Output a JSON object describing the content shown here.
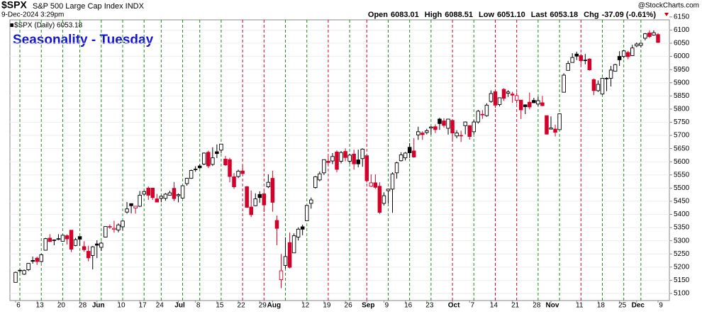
{
  "chart_data": {
    "type": "candlestick",
    "title": "$SPX",
    "subtitle": "S&P 500 Large Cap Index INDX",
    "date": "9-Dec-2024 3:29pm",
    "watermark": "@StockCharts.com",
    "quote": [
      {
        "label": "Open",
        "value": "6083.01"
      },
      {
        "label": "High",
        "value": "6088.51"
      },
      {
        "label": "Low",
        "value": "6051.10"
      },
      {
        "label": "Last",
        "value": "6053.18"
      },
      {
        "label": "Chg",
        "value": "-37.09 (-0.61%)"
      }
    ],
    "legend": "$SPX (Daily) 6053.18",
    "annotation": "Seasonality - Tuesday",
    "up_color": "#1a8f1a",
    "down_color": "#d4002a",
    "grid": true,
    "x": [
      "2024-05-06",
      "2024-05-07",
      "2024-05-08",
      "2024-05-09",
      "2024-05-10",
      "2024-05-13",
      "2024-05-14",
      "2024-05-15",
      "2024-05-16",
      "2024-05-17",
      "2024-05-20",
      "2024-05-21",
      "2024-05-22",
      "2024-05-23",
      "2024-05-24",
      "2024-05-28",
      "2024-05-29",
      "2024-05-30",
      "2024-05-31",
      "2024-06-03",
      "2024-06-04",
      "2024-06-05",
      "2024-06-06",
      "2024-06-07",
      "2024-06-10",
      "2024-06-11",
      "2024-06-12",
      "2024-06-13",
      "2024-06-14",
      "2024-06-17",
      "2024-06-18",
      "2024-06-20",
      "2024-06-21",
      "2024-06-24",
      "2024-06-25",
      "2024-06-26",
      "2024-06-27",
      "2024-06-28",
      "2024-07-01",
      "2024-07-02",
      "2024-07-03",
      "2024-07-05",
      "2024-07-08",
      "2024-07-09",
      "2024-07-10",
      "2024-07-11",
      "2024-07-12",
      "2024-07-15",
      "2024-07-16",
      "2024-07-17",
      "2024-07-18",
      "2024-07-19",
      "2024-07-22",
      "2024-07-23",
      "2024-07-24",
      "2024-07-25",
      "2024-07-26",
      "2024-07-29",
      "2024-07-30",
      "2024-07-31",
      "2024-08-01",
      "2024-08-02",
      "2024-08-05",
      "2024-08-06",
      "2024-08-07",
      "2024-08-08",
      "2024-08-09",
      "2024-08-12",
      "2024-08-13",
      "2024-08-14",
      "2024-08-15",
      "2024-08-16",
      "2024-08-19",
      "2024-08-20",
      "2024-08-21",
      "2024-08-22",
      "2024-08-23",
      "2024-08-26",
      "2024-08-27",
      "2024-08-28",
      "2024-08-29",
      "2024-08-30",
      "2024-09-03",
      "2024-09-04",
      "2024-09-05",
      "2024-09-06",
      "2024-09-09",
      "2024-09-10",
      "2024-09-11",
      "2024-09-12",
      "2024-09-13",
      "2024-09-16",
      "2024-09-17",
      "2024-09-18",
      "2024-09-19",
      "2024-09-20",
      "2024-09-23",
      "2024-09-24",
      "2024-09-25",
      "2024-09-26",
      "2024-09-27",
      "2024-09-30",
      "2024-10-01",
      "2024-10-02",
      "2024-10-03",
      "2024-10-04",
      "2024-10-07",
      "2024-10-08",
      "2024-10-09",
      "2024-10-10",
      "2024-10-11",
      "2024-10-14",
      "2024-10-15",
      "2024-10-16",
      "2024-10-17",
      "2024-10-18",
      "2024-10-21",
      "2024-10-22",
      "2024-10-23",
      "2024-10-24",
      "2024-10-25",
      "2024-10-28",
      "2024-10-29",
      "2024-10-30",
      "2024-10-31",
      "2024-11-01",
      "2024-11-04",
      "2024-11-05",
      "2024-11-06",
      "2024-11-07",
      "2024-11-08",
      "2024-11-11",
      "2024-11-12",
      "2024-11-13",
      "2024-11-14",
      "2024-11-15",
      "2024-11-18",
      "2024-11-19",
      "2024-11-20",
      "2024-11-21",
      "2024-11-22",
      "2024-11-25",
      "2024-11-26",
      "2024-11-27",
      "2024-11-29",
      "2024-12-02",
      "2024-12-03",
      "2024-12-04",
      "2024-12-05",
      "2024-12-06",
      "2024-12-09"
    ],
    "open": [
      5142,
      5188,
      5173,
      5190,
      5225,
      5234,
      5221,
      5264,
      5310,
      5303,
      5305,
      5298,
      5319,
      5340,
      5282,
      5316,
      5278,
      5260,
      5244,
      5288,
      5275,
      5314,
      5354,
      5343,
      5341,
      5353,
      5409,
      5441,
      5424,
      5431,
      5477,
      5500,
      5500,
      5459,
      5461,
      5461,
      5473,
      5499,
      5471,
      5462,
      5517,
      5537,
      5572,
      5584,
      5591,
      5636,
      5590,
      5638,
      5644,
      5610,
      5608,
      5543,
      5544,
      5565,
      5505,
      5428,
      5433,
      5476,
      5478,
      5505,
      5537,
      5377,
      5152,
      5206,
      5293,
      5254,
      5314,
      5353,
      5376,
      5442,
      5502,
      5531,
      5558,
      5602,
      5603,
      5637,
      5602,
      5639,
      5602,
      5629,
      5607,
      5612,
      5623,
      5507,
      5520,
      5507,
      5442,
      5490,
      5496,
      5558,
      5604,
      5615,
      5655,
      5641,
      5702,
      5709,
      5711,
      5728,
      5733,
      5762,
      5755,
      5727,
      5757,
      5698,
      5698,
      5737,
      5737,
      5714,
      5751,
      5778,
      5775,
      5829,
      5866,
      5817,
      5875,
      5860,
      5857,
      5833,
      5834,
      5816,
      5826,
      5833,
      5819,
      5824,
      5775,
      5724,
      5724,
      5722,
      5864,
      5947,
      5977,
      6009,
      6003,
      5986,
      5990,
      5912,
      5870,
      5857,
      5917,
      5917,
      5944,
      6000,
      6000,
      6015,
      6003,
      6040,
      6042,
      6069,
      6089,
      6081,
      6083.01
    ],
    "high": [
      5183,
      5192,
      5191,
      5215,
      5240,
      5239,
      5250,
      5311,
      5325,
      5305,
      5325,
      5323,
      5324,
      5341,
      5311,
      5316,
      5298,
      5281,
      5280,
      5302,
      5297,
      5354,
      5362,
      5376,
      5366,
      5376,
      5447,
      5441,
      5432,
      5489,
      5490,
      5506,
      5500,
      5478,
      5472,
      5481,
      5490,
      5523,
      5480,
      5510,
      5539,
      5570,
      5583,
      5590,
      5635,
      5642,
      5655,
      5666,
      5667,
      5622,
      5615,
      5557,
      5570,
      5586,
      5508,
      5491,
      5480,
      5488,
      5487,
      5552,
      5566,
      5396,
      5250,
      5313,
      5331,
      5328,
      5351,
      5361,
      5436,
      5464,
      5546,
      5563,
      5608,
      5620,
      5633,
      5643,
      5641,
      5651,
      5631,
      5646,
      5646,
      5651,
      5623,
      5552,
      5552,
      5522,
      5484,
      5497,
      5560,
      5600,
      5636,
      5637,
      5671,
      5690,
      5733,
      5716,
      5725,
      5735,
      5742,
      5767,
      5765,
      5763,
      5757,
      5720,
      5718,
      5753,
      5739,
      5758,
      5797,
      5796,
      5822,
      5871,
      5871,
      5843,
      5879,
      5872,
      5866,
      5863,
      5834,
      5818,
      5863,
      5843,
      5847,
      5850,
      5775,
      5772,
      5741,
      5783,
      5936,
      5983,
      6012,
      6018,
      6010,
      6009,
      5993,
      5916,
      5909,
      5919,
      5921,
      5964,
      5972,
      6020,
      6025,
      6021,
      6044,
      6053,
      6052,
      6089,
      6099,
      6099,
      6088.51
    ],
    "low": [
      5142,
      5178,
      5170,
      5185,
      5213,
      5208,
      5217,
      5263,
      5297,
      5283,
      5302,
      5297,
      5286,
      5257,
      5279,
      5280,
      5258,
      5222,
      5191,
      5234,
      5261,
      5313,
      5345,
      5331,
      5332,
      5339,
      5403,
      5404,
      5403,
      5428,
      5472,
      5455,
      5455,
      5447,
      5446,
      5452,
      5472,
      5451,
      5446,
      5462,
      5509,
      5535,
      5562,
      5574,
      5587,
      5576,
      5584,
      5614,
      5632,
      5584,
      5522,
      5497,
      5538,
      5554,
      5425,
      5390,
      5431,
      5444,
      5409,
      5500,
      5410,
      5283,
      5120,
      5194,
      5195,
      5254,
      5301,
      5321,
      5376,
      5422,
      5498,
      5526,
      5550,
      5585,
      5591,
      5560,
      5594,
      5602,
      5593,
      5570,
      5579,
      5581,
      5521,
      5504,
      5497,
      5402,
      5434,
      5442,
      5406,
      5536,
      5601,
      5605,
      5614,
      5615,
      5683,
      5683,
      5704,
      5703,
      5709,
      5721,
      5730,
      5703,
      5677,
      5689,
      5675,
      5704,
      5684,
      5704,
      5745,
      5763,
      5771,
      5824,
      5804,
      5810,
      5831,
      5846,
      5824,
      5821,
      5762,
      5781,
      5799,
      5823,
      5811,
      5811,
      5703,
      5723,
      5696,
      5722,
      5864,
      5947,
      5976,
      5986,
      5966,
      5970,
      5946,
      5853,
      5865,
      5854,
      5868,
      5886,
      5944,
      5964,
      5993,
      5989,
      6003,
      6035,
      6034,
      6061,
      6070,
      6079,
      6051.1
    ],
    "close": [
      5180,
      5187,
      5187,
      5214,
      5222,
      5221,
      5247,
      5308,
      5297,
      5303,
      5308,
      5321,
      5307,
      5268,
      5304,
      5306,
      5266,
      5235,
      5277,
      5283,
      5291,
      5354,
      5352,
      5347,
      5360,
      5375,
      5421,
      5433,
      5431,
      5473,
      5487,
      5473,
      5464,
      5447,
      5469,
      5477,
      5482,
      5460,
      5475,
      5509,
      5537,
      5567,
      5572,
      5577,
      5633,
      5584,
      5615,
      5631,
      5667,
      5588,
      5544,
      5505,
      5564,
      5555,
      5427,
      5399,
      5459,
      5464,
      5436,
      5522,
      5446,
      5347,
      5186,
      5240,
      5199,
      5319,
      5344,
      5344,
      5434,
      5455,
      5543,
      5554,
      5608,
      5597,
      5620,
      5571,
      5635,
      5616,
      5625,
      5592,
      5592,
      5648,
      5528,
      5520,
      5503,
      5408,
      5471,
      5496,
      5554,
      5596,
      5626,
      5633,
      5634,
      5618,
      5714,
      5703,
      5718,
      5732,
      5722,
      5745,
      5738,
      5762,
      5709,
      5709,
      5700,
      5751,
      5696,
      5751,
      5792,
      5780,
      5815,
      5859,
      5815,
      5843,
      5841,
      5865,
      5853,
      5851,
      5797,
      5809,
      5808,
      5824,
      5832,
      5813,
      5705,
      5728,
      5712,
      5782,
      5929,
      5973,
      5996,
      6001,
      5984,
      5985,
      5949,
      5870,
      5894,
      5917,
      5917,
      5948,
      5969,
      5987,
      6021,
      5999,
      6032,
      6047,
      6050,
      6086,
      6075,
      6090,
      6053.18
    ],
    "ylim": [
      5073,
      6155
    ],
    "yticks": [
      5100,
      5150,
      5200,
      5250,
      5300,
      5350,
      5400,
      5450,
      5500,
      5550,
      5600,
      5650,
      5700,
      5750,
      5800,
      5850,
      5900,
      5950,
      6000,
      6050,
      6100,
      6150
    ],
    "xticks": [
      {
        "value": "2024-05-06",
        "label": "6"
      },
      {
        "value": "2024-05-13",
        "label": "13"
      },
      {
        "value": "2024-05-20",
        "label": "20"
      },
      {
        "value": "2024-05-28",
        "label": "28"
      },
      {
        "value": "2024-06-03",
        "label": "Jun"
      },
      {
        "value": "2024-06-10",
        "label": "10"
      },
      {
        "value": "2024-06-17",
        "label": "17"
      },
      {
        "value": "2024-06-24",
        "label": "24"
      },
      {
        "value": "2024-07-01",
        "label": "Jul"
      },
      {
        "value": "2024-07-08",
        "label": "8"
      },
      {
        "value": "2024-07-15",
        "label": "15"
      },
      {
        "value": "2024-07-22",
        "label": "22"
      },
      {
        "value": "2024-07-29",
        "label": "29"
      },
      {
        "value": "2024-08-01",
        "label": "Aug"
      },
      {
        "value": "2024-08-12",
        "label": "12"
      },
      {
        "value": "2024-08-19",
        "label": "19"
      },
      {
        "value": "2024-08-26",
        "label": "26"
      },
      {
        "value": "2024-09-03",
        "label": "Sep"
      },
      {
        "value": "2024-09-09",
        "label": "9"
      },
      {
        "value": "2024-09-16",
        "label": "16"
      },
      {
        "value": "2024-09-23",
        "label": "23"
      },
      {
        "value": "2024-10-01",
        "label": "Oct"
      },
      {
        "value": "2024-10-07",
        "label": "7"
      },
      {
        "value": "2024-10-14",
        "label": "14"
      },
      {
        "value": "2024-10-21",
        "label": "21"
      },
      {
        "value": "2024-10-28",
        "label": "28"
      },
      {
        "value": "2024-11-01",
        "label": "Nov"
      },
      {
        "value": "2024-11-11",
        "label": "11"
      },
      {
        "value": "2024-11-18",
        "label": "18"
      },
      {
        "value": "2024-11-25",
        "label": "25"
      },
      {
        "value": "2024-12-02",
        "label": "Dec"
      },
      {
        "value": "2024-12-09",
        "label": "9"
      }
    ]
  }
}
